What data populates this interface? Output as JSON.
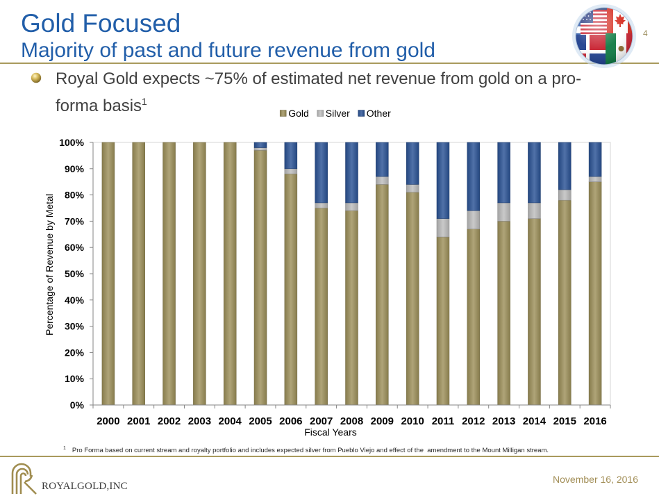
{
  "slide": {
    "title": "Gold Focused",
    "subtitle": "Majority of past and future revenue from gold",
    "page_number": "4",
    "bullet": {
      "line1": "Royal Gold expects ~75% of estimated net revenue from gold on a pro-",
      "line2": "forma basis",
      "footnote_ref": "1"
    },
    "footnote": {
      "marker": "1",
      "text": "Pro Forma based on current stream and royalty portfolio and includes expected silver from Pueblo Viejo and effect of the  amendment to the Mount Milligan stream."
    },
    "logo_text": "ROYALGOLD,INC",
    "date": "November 16, 2016"
  },
  "icons": {
    "bullet": "gold-sphere-bullet-icon",
    "header_image": "flags-globe-image",
    "logo": "royal-gold-logo-icon"
  },
  "colors": {
    "title": "#215EA9",
    "body_text": "#404040",
    "accent_rule": "#A99A5D",
    "date": "#A28E56",
    "page_number": "#9C8E5E",
    "logo": "#A08D50"
  },
  "chart_data": {
    "type": "bar",
    "stacked": true,
    "categories": [
      "2000",
      "2001",
      "2002",
      "2003",
      "2004",
      "2005",
      "2006",
      "2007",
      "2008",
      "2009",
      "2010",
      "2011",
      "2012",
      "2013",
      "2014",
      "2015",
      "2016"
    ],
    "series": [
      {
        "name": "Gold",
        "color": "#9D905A",
        "values": [
          100,
          100,
          100,
          100,
          100,
          97,
          88,
          75,
          74,
          84,
          81,
          64,
          67,
          70,
          71,
          78,
          85
        ]
      },
      {
        "name": "Silver",
        "color": "#BDBDBD",
        "values": [
          0,
          0,
          0,
          0,
          0,
          1,
          2,
          2,
          3,
          3,
          3,
          7,
          7,
          7,
          6,
          4,
          2
        ]
      },
      {
        "name": "Other",
        "color": "#2A5295",
        "values": [
          0,
          0,
          0,
          0,
          0,
          2,
          10,
          23,
          23,
          13,
          16,
          29,
          26,
          23,
          23,
          18,
          13
        ]
      }
    ],
    "xlabel": "Fiscal Years",
    "ylabel": "Percentage of Revenue by Metal",
    "ylim": [
      0,
      100
    ],
    "y_ticks": [
      0,
      10,
      20,
      30,
      40,
      50,
      60,
      70,
      80,
      90,
      100
    ],
    "y_tick_labels": [
      "0%",
      "10%",
      "20%",
      "30%",
      "40%",
      "50%",
      "60%",
      "70%",
      "80%",
      "90%",
      "100%"
    ],
    "legend_position": "top",
    "grid": false
  }
}
